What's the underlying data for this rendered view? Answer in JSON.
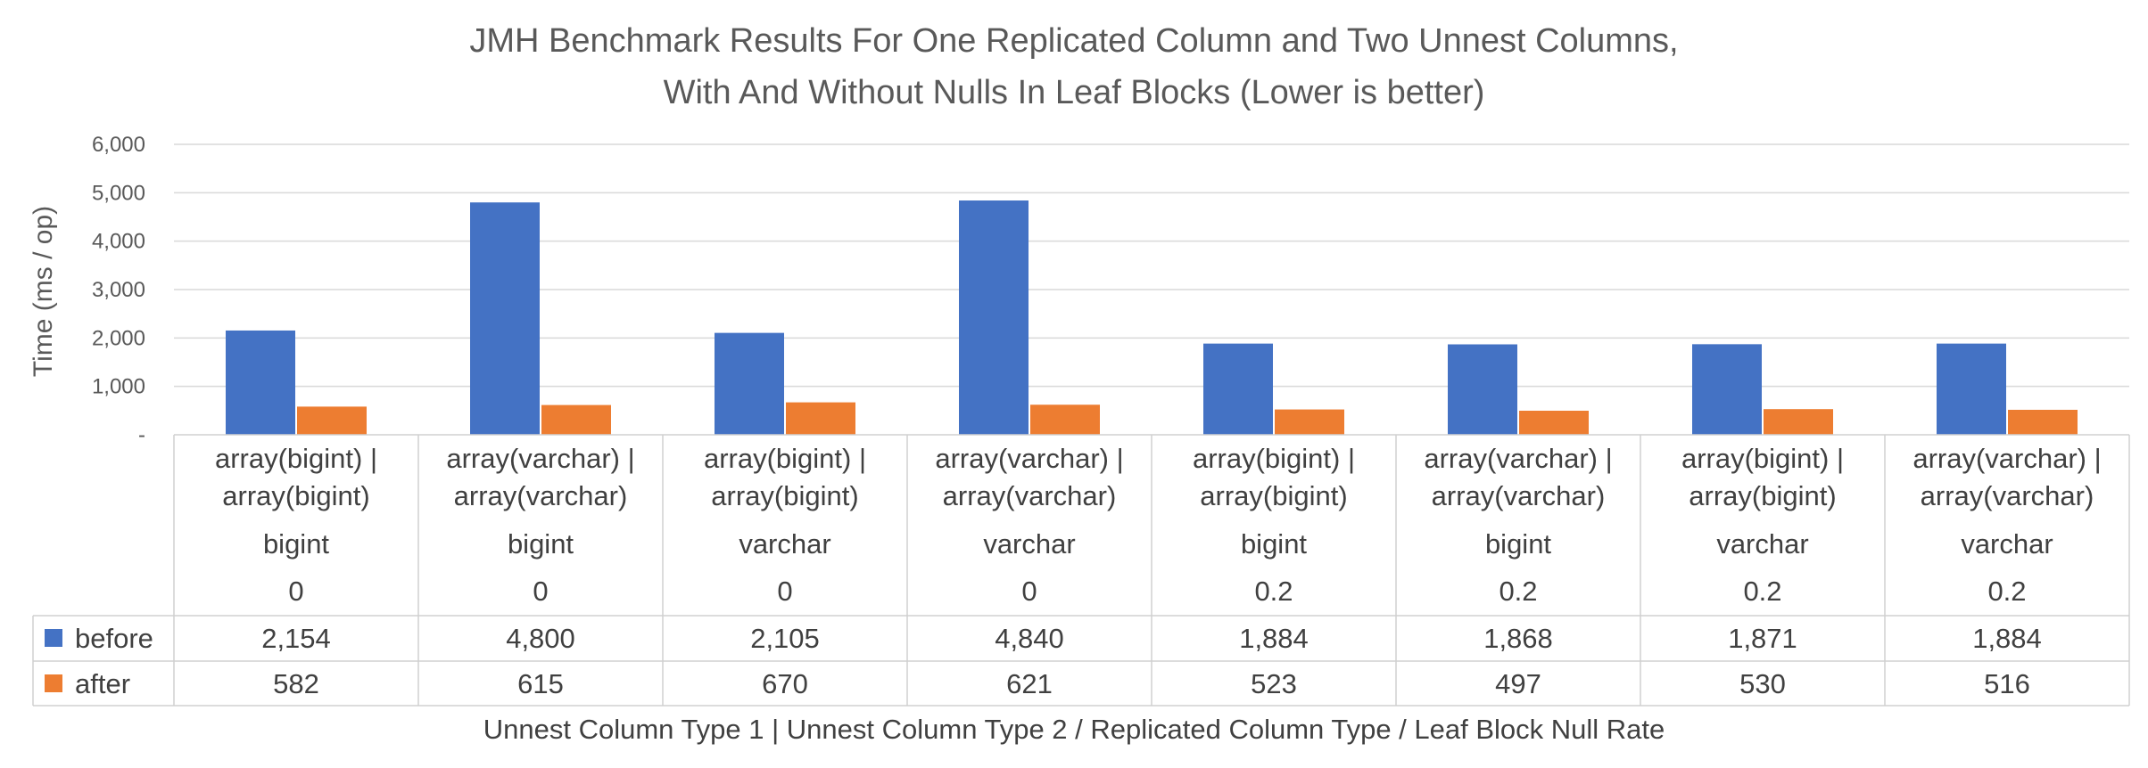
{
  "chart_data": {
    "type": "bar",
    "title": "JMH Benchmark Results For One Replicated Column and Two Unnest Columns,",
    "subtitle": "With And Without Nulls In Leaf Blocks (Lower is better)",
    "ylabel": "Time (ms / op)",
    "xlabel": "Unnest Column Type 1 | Unnest Column Type 2 /  Replicated Column Type / Leaf Block Null Rate",
    "ylim": [
      0,
      6000
    ],
    "y_ticks": [
      "6,000",
      "5,000",
      "4,000",
      "3,000",
      "2,000",
      "1,000",
      "-"
    ],
    "grid": true,
    "legend_position": "data-table",
    "categories": [
      {
        "line1": "array(bigint) |",
        "line2": "array(bigint)",
        "replicated": "bigint",
        "null_rate": "0"
      },
      {
        "line1": "array(varchar) |",
        "line2": "array(varchar)",
        "replicated": "bigint",
        "null_rate": "0"
      },
      {
        "line1": "array(bigint) |",
        "line2": "array(bigint)",
        "replicated": "varchar",
        "null_rate": "0"
      },
      {
        "line1": "array(varchar) |",
        "line2": "array(varchar)",
        "replicated": "varchar",
        "null_rate": "0"
      },
      {
        "line1": "array(bigint) |",
        "line2": "array(bigint)",
        "replicated": "bigint",
        "null_rate": "0.2"
      },
      {
        "line1": "array(varchar) |",
        "line2": "array(varchar)",
        "replicated": "bigint",
        "null_rate": "0.2"
      },
      {
        "line1": "array(bigint) |",
        "line2": "array(bigint)",
        "replicated": "varchar",
        "null_rate": "0.2"
      },
      {
        "line1": "array(varchar) |",
        "line2": "array(varchar)",
        "replicated": "varchar",
        "null_rate": "0.2"
      }
    ],
    "series": [
      {
        "name": "before",
        "color": "#4472C4",
        "values": [
          2154,
          4800,
          2105,
          4840,
          1884,
          1868,
          1871,
          1884
        ],
        "labels": [
          "2,154",
          "4,800",
          "2,105",
          "4,840",
          "1,884",
          "1,868",
          "1,871",
          "1,884"
        ]
      },
      {
        "name": "after",
        "color": "#ED7D31",
        "values": [
          582,
          615,
          670,
          621,
          523,
          497,
          530,
          516
        ],
        "labels": [
          "582",
          "615",
          "670",
          "621",
          "523",
          "497",
          "530",
          "516"
        ]
      }
    ]
  }
}
